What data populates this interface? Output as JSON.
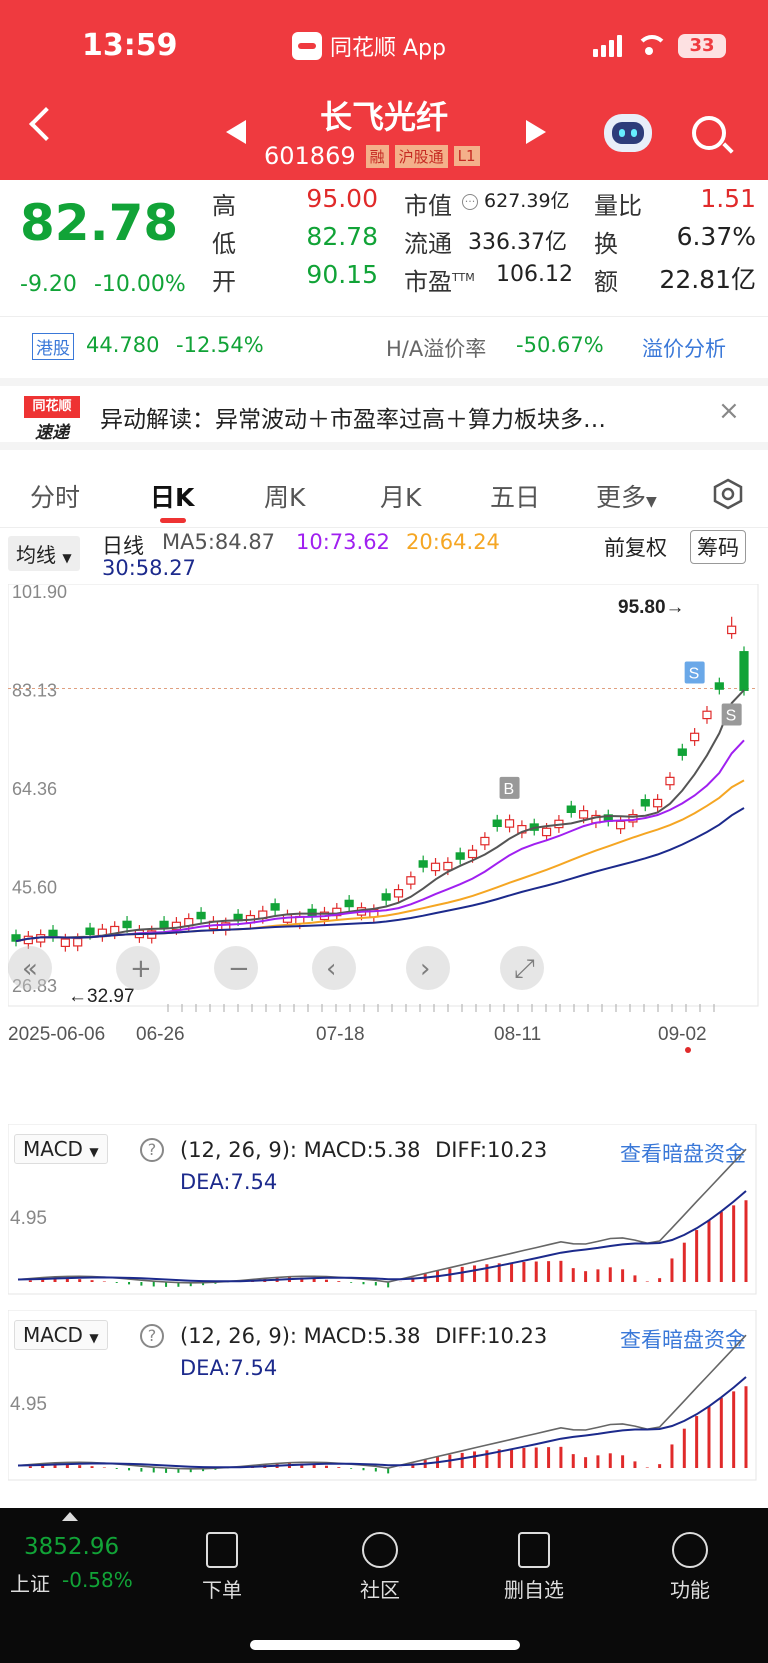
{
  "status": {
    "time": "13:59",
    "app_name": "同花顺 App",
    "battery": "33"
  },
  "header": {
    "stock_name": "长飞光纤",
    "stock_code": "601869",
    "tags": [
      "融",
      "沪股通",
      "L1"
    ]
  },
  "quote": {
    "price": "82.78",
    "change": "-9.20",
    "change_pct": "-10.00%",
    "high_label": "高",
    "high": "95.00",
    "low_label": "低",
    "low": "82.78",
    "open_label": "开",
    "open": "90.15",
    "mcap_label": "市值",
    "mcap": "627.39亿",
    "float_label": "流通",
    "float_cap": "336.37亿",
    "pe_label": "市盈",
    "pe_sup": "TTM",
    "pe": "106.12",
    "vol_ratio_label": "量比",
    "vol_ratio": "1.51",
    "turnover_label": "换",
    "turnover": "6.37%",
    "amount_label": "额",
    "amount": "22.81亿"
  },
  "hk": {
    "badge": "港股",
    "price": "44.780",
    "change_pct": "-12.54%",
    "premium_label": "H/A溢价率",
    "premium": "-50.67%",
    "analysis_link": "溢价分析"
  },
  "news": {
    "logo_top": "同花顺",
    "logo_bottom": "速递",
    "text": "异动解读：异常波动＋市盈率过高＋算力板块多…"
  },
  "tabs": [
    "分时",
    "日K",
    "周K",
    "月K",
    "五日",
    "更多"
  ],
  "ma": {
    "selector": "均线",
    "label": "日线",
    "ma5": "MA5:84.87",
    "ma10": "10:73.62",
    "ma20": "20:64.24",
    "ma30": "30:58.27",
    "adjust": "前复权",
    "chips": "筹码"
  },
  "kline": {
    "y_ticks": [
      "101.90",
      "83.13",
      "64.36",
      "45.60",
      "26.83"
    ],
    "max_label": "95.80→",
    "min_label": "←32.97",
    "x_labels": [
      "2025-06-06",
      "06-26",
      "07-18",
      "08-11",
      "09-02"
    ],
    "markers": [
      "S",
      "S",
      "B"
    ]
  },
  "macd1": {
    "selector": "MACD",
    "params": "(12, 26, 9):",
    "macd": "MACD:5.38",
    "diff": "DIFF:10.23",
    "dea": "DEA:7.54",
    "link": "查看暗盘资金",
    "y_tick": "4.95"
  },
  "macd2": {
    "selector": "MACD",
    "params": "(12, 26, 9):",
    "macd": "MACD:5.38",
    "diff": "DIFF:10.23",
    "dea": "DEA:7.54",
    "link": "查看暗盘资金",
    "y_tick": "4.95"
  },
  "bottom": {
    "index_value": "3852.96",
    "index_name": "上证",
    "index_change": "-0.58%",
    "nav": [
      "下单",
      "社区",
      "删自选",
      "功能"
    ]
  },
  "colors": {
    "up": "#e02a2a",
    "down": "#11a337",
    "ma5": "#555555",
    "ma10": "#a020f0",
    "ma20": "#f5a623",
    "ma30": "#1c2a8c"
  }
}
